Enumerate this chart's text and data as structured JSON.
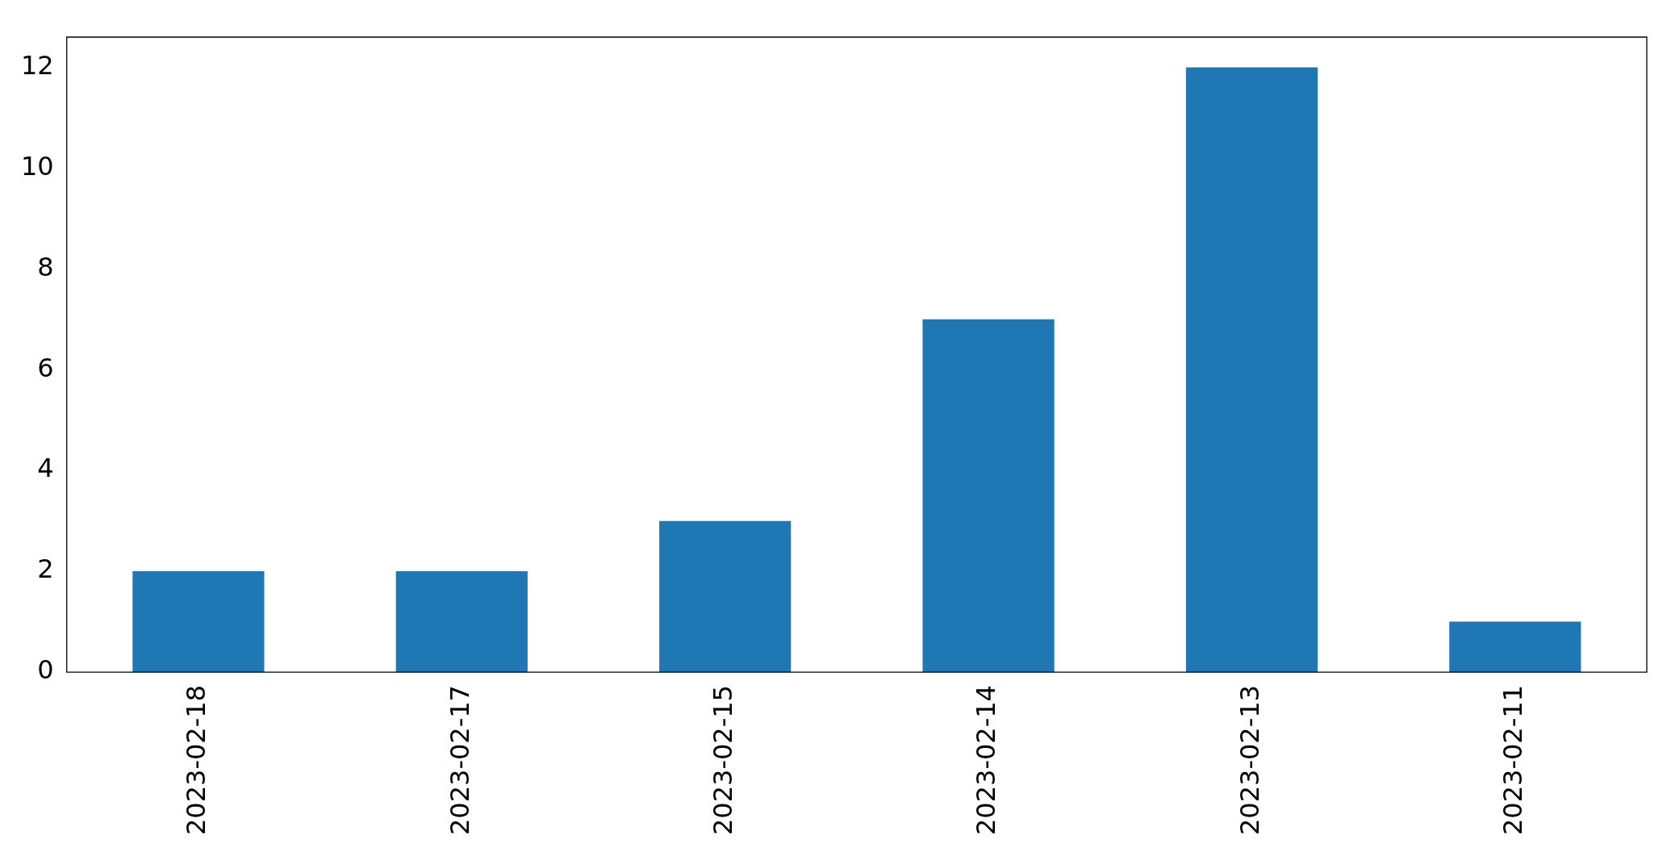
{
  "chart_data": {
    "type": "bar",
    "categories": [
      "2023-02-18",
      "2023-02-17",
      "2023-02-15",
      "2023-02-14",
      "2023-02-13",
      "2023-02-11"
    ],
    "values": [
      2,
      2,
      3,
      7,
      12,
      1
    ],
    "color": "#1f77b4",
    "ylim": [
      0,
      12.6
    ],
    "yticks": [
      0,
      2,
      4,
      6,
      8,
      10,
      12
    ],
    "grid": false,
    "legend": false
  }
}
